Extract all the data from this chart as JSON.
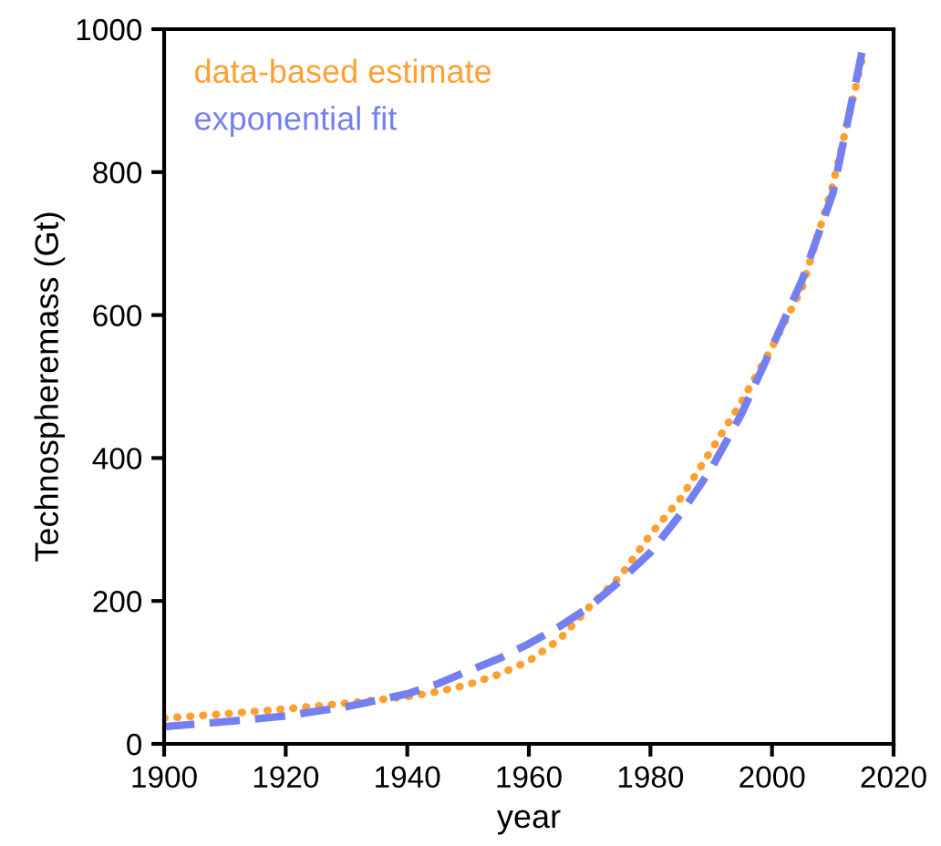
{
  "chart_data": {
    "type": "line",
    "xlabel": "year",
    "ylabel": "Technospheremass (Gt)",
    "xlim": [
      1900,
      2020
    ],
    "xticks": [
      1900,
      1920,
      1940,
      1960,
      1980,
      2000,
      2020
    ],
    "ylim": [
      0,
      1000
    ],
    "yticks": [
      0,
      200,
      400,
      600,
      800,
      1000
    ],
    "grid": false,
    "legend": "top left",
    "series": [
      {
        "name": "data-based estimate",
        "color": "#ffa031",
        "line_style": "dotted",
        "x": [
          1900,
          1910,
          1920,
          1930,
          1940,
          1945,
          1950,
          1955,
          1960,
          1965,
          1970,
          1975,
          1980,
          1985,
          1990,
          1995,
          2000,
          2005,
          2010,
          2015
        ],
        "values": [
          36,
          42,
          49,
          57,
          66,
          73,
          83,
          97,
          116,
          146,
          192,
          234,
          293,
          344,
          411,
          479,
          555,
          639,
          782,
          964
        ]
      },
      {
        "name": "exponential fit",
        "color": "#7480f0",
        "line_style": "dashed",
        "x": [
          1900,
          1910,
          1920,
          1930,
          1940,
          1945,
          1950,
          1955,
          1960,
          1965,
          1970,
          1975,
          1980,
          1985,
          1990,
          1995,
          2000,
          2005,
          2010,
          2015
        ],
        "values": [
          24,
          31,
          39,
          52,
          70,
          84,
          102,
          119,
          140,
          164,
          192,
          228,
          268,
          322,
          385,
          462,
          555,
          650,
          770,
          976
        ]
      }
    ]
  }
}
